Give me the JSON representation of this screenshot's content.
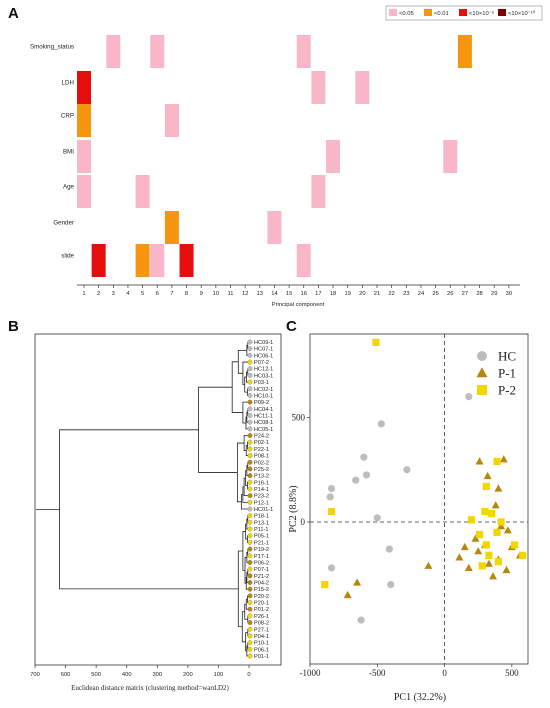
{
  "panels": {
    "a": {
      "label": "A"
    },
    "b": {
      "label": "B"
    },
    "c": {
      "label": "C"
    }
  },
  "chart_data": [
    {
      "panel": "A",
      "type": "heatmap",
      "xlabel": "Principal component",
      "x": [
        1,
        2,
        3,
        4,
        5,
        6,
        7,
        8,
        9,
        10,
        11,
        12,
        13,
        14,
        15,
        16,
        17,
        18,
        19,
        20,
        21,
        22,
        23,
        24,
        25,
        26,
        27,
        28,
        29,
        30
      ],
      "rows": [
        "Smoking_status",
        "LDH",
        "CRP",
        "BMI",
        "Age",
        "Gender",
        "slide"
      ],
      "legend": [
        {
          "key": "p05",
          "label": "<0.05",
          "color": "#f9b6c9"
        },
        {
          "key": "p01",
          "label": "<0.01",
          "color": "#f6960f"
        },
        {
          "key": "p1e5",
          "label": "<10×10⁻⁵",
          "color": "#e60d0d"
        },
        {
          "key": "p1e10",
          "label": "<10×10⁻¹⁰",
          "color": "#7a0000"
        }
      ],
      "cells": [
        {
          "row": "Smoking_status",
          "pc": 3,
          "level": "p05"
        },
        {
          "row": "Smoking_status",
          "pc": 6,
          "level": "p05"
        },
        {
          "row": "Smoking_status",
          "pc": 16,
          "level": "p05"
        },
        {
          "row": "Smoking_status",
          "pc": 27,
          "level": "p01"
        },
        {
          "row": "LDH",
          "pc": 1,
          "level": "p1e5"
        },
        {
          "row": "LDH",
          "pc": 17,
          "level": "p05"
        },
        {
          "row": "LDH",
          "pc": 20,
          "level": "p05"
        },
        {
          "row": "CRP",
          "pc": 1,
          "level": "p01"
        },
        {
          "row": "CRP",
          "pc": 7,
          "level": "p05"
        },
        {
          "row": "BMI",
          "pc": 1,
          "level": "p05"
        },
        {
          "row": "BMI",
          "pc": 18,
          "level": "p05"
        },
        {
          "row": "BMI",
          "pc": 26,
          "level": "p05"
        },
        {
          "row": "Age",
          "pc": 1,
          "level": "p05"
        },
        {
          "row": "Age",
          "pc": 5,
          "level": "p05"
        },
        {
          "row": "Age",
          "pc": 17,
          "level": "p05"
        },
        {
          "row": "Gender",
          "pc": 7,
          "level": "p01"
        },
        {
          "row": "Gender",
          "pc": 14,
          "level": "p05"
        },
        {
          "row": "slide",
          "pc": 2,
          "level": "p1e5"
        },
        {
          "row": "slide",
          "pc": 5,
          "level": "p01"
        },
        {
          "row": "slide",
          "pc": 6,
          "level": "p05"
        },
        {
          "row": "slide",
          "pc": 8,
          "level": "p1e5"
        },
        {
          "row": "slide",
          "pc": 16,
          "level": "p05"
        }
      ]
    },
    {
      "panel": "B",
      "type": "dendrogram",
      "xlabel": "Euclidean distance matrix (clustering method=ward.D2)",
      "xticks": [
        700,
        600,
        500,
        400,
        300,
        200,
        100,
        0
      ],
      "group_colors": {
        "HC": "#bdbdbd",
        "P-1": "#b8860b",
        "P-2": "#f2d600"
      },
      "leaves": [
        {
          "label": "HC09-1",
          "group": "HC"
        },
        {
          "label": "HC07-1",
          "group": "HC"
        },
        {
          "label": "HC06-1",
          "group": "HC"
        },
        {
          "label": "P07-2",
          "group": "P-2"
        },
        {
          "label": "HC12-1",
          "group": "HC"
        },
        {
          "label": "HC03-1",
          "group": "HC"
        },
        {
          "label": "P03-1",
          "group": "P-2"
        },
        {
          "label": "HC02-1",
          "group": "HC"
        },
        {
          "label": "HC10-1",
          "group": "HC"
        },
        {
          "label": "P09-2",
          "group": "P-1"
        },
        {
          "label": "HC04-1",
          "group": "HC"
        },
        {
          "label": "HC11-1",
          "group": "HC"
        },
        {
          "label": "HC08-1",
          "group": "HC"
        },
        {
          "label": "HC05-1",
          "group": "HC"
        },
        {
          "label": "P24-2",
          "group": "P-1"
        },
        {
          "label": "P02-1",
          "group": "P-2"
        },
        {
          "label": "P22-1",
          "group": "P-2"
        },
        {
          "label": "P08-1",
          "group": "P-2"
        },
        {
          "label": "P02-2",
          "group": "P-1"
        },
        {
          "label": "P25-2",
          "group": "P-1"
        },
        {
          "label": "P13-2",
          "group": "P-1"
        },
        {
          "label": "P16-1",
          "group": "P-2"
        },
        {
          "label": "P14-1",
          "group": "P-2"
        },
        {
          "label": "P23-2",
          "group": "P-1"
        },
        {
          "label": "P12-1",
          "group": "P-2"
        },
        {
          "label": "HC01-1",
          "group": "HC"
        },
        {
          "label": "P18-1",
          "group": "P-2"
        },
        {
          "label": "P13-1",
          "group": "P-2"
        },
        {
          "label": "P11-1",
          "group": "P-2"
        },
        {
          "label": "P05-1",
          "group": "P-2"
        },
        {
          "label": "P21-1",
          "group": "P-2"
        },
        {
          "label": "P19-2",
          "group": "P-1"
        },
        {
          "label": "P17-1",
          "group": "P-2"
        },
        {
          "label": "P06-2",
          "group": "P-1"
        },
        {
          "label": "P07-1",
          "group": "P-2"
        },
        {
          "label": "P21-2",
          "group": "P-1"
        },
        {
          "label": "P04-2",
          "group": "P-1"
        },
        {
          "label": "P15-2",
          "group": "P-1"
        },
        {
          "label": "P20-2",
          "group": "P-1"
        },
        {
          "label": "P20-1",
          "group": "P-2"
        },
        {
          "label": "P01-2",
          "group": "P-1"
        },
        {
          "label": "P26-1",
          "group": "P-2"
        },
        {
          "label": "P08-2",
          "group": "P-1"
        },
        {
          "label": "P27-1",
          "group": "P-2"
        },
        {
          "label": "P04-1",
          "group": "P-2"
        },
        {
          "label": "P10-1",
          "group": "P-2"
        },
        {
          "label": "P06-1",
          "group": "P-2"
        },
        {
          "label": "P01-1",
          "group": "P-2"
        }
      ],
      "merges": [
        {
          "a": 0,
          "b": 1,
          "h": 4
        },
        {
          "a": 48,
          "b": 2,
          "h": 7
        },
        {
          "a": 4,
          "b": 5,
          "h": 4
        },
        {
          "a": 50,
          "b": 6,
          "h": 8
        },
        {
          "a": 7,
          "b": 8,
          "h": 5
        },
        {
          "a": 51,
          "b": 52,
          "h": 14
        },
        {
          "a": 3,
          "b": 53,
          "h": 20
        },
        {
          "a": 49,
          "b": 54,
          "h": 35
        },
        {
          "a": 10,
          "b": 11,
          "h": 4
        },
        {
          "a": 56,
          "b": 12,
          "h": 7
        },
        {
          "a": 57,
          "b": 13,
          "h": 10
        },
        {
          "a": 9,
          "b": 58,
          "h": 20
        },
        {
          "a": 55,
          "b": 59,
          "h": 55
        },
        {
          "a": 15,
          "b": 16,
          "h": 5
        },
        {
          "a": 61,
          "b": 17,
          "h": 9
        },
        {
          "a": 14,
          "b": 62,
          "h": 16
        },
        {
          "a": 18,
          "b": 19,
          "h": 4
        },
        {
          "a": 64,
          "b": 20,
          "h": 7
        },
        {
          "a": 21,
          "b": 22,
          "h": 5
        },
        {
          "a": 65,
          "b": 66,
          "h": 11
        },
        {
          "a": 67,
          "b": 23,
          "h": 16
        },
        {
          "a": 68,
          "b": 24,
          "h": 20
        },
        {
          "a": 69,
          "b": 25,
          "h": 25
        },
        {
          "a": 63,
          "b": 70,
          "h": 38
        },
        {
          "a": 60,
          "b": 71,
          "h": 165
        },
        {
          "a": 26,
          "b": 27,
          "h": 4
        },
        {
          "a": 73,
          "b": 28,
          "h": 7
        },
        {
          "a": 29,
          "b": 30,
          "h": 5
        },
        {
          "a": 74,
          "b": 75,
          "h": 11
        },
        {
          "a": 31,
          "b": 32,
          "h": 4
        },
        {
          "a": 77,
          "b": 33,
          "h": 7
        },
        {
          "a": 34,
          "b": 35,
          "h": 4
        },
        {
          "a": 79,
          "b": 36,
          "h": 7
        },
        {
          "a": 80,
          "b": 37,
          "h": 9
        },
        {
          "a": 78,
          "b": 81,
          "h": 13
        },
        {
          "a": 76,
          "b": 82,
          "h": 20
        },
        {
          "a": 38,
          "b": 39,
          "h": 5
        },
        {
          "a": 84,
          "b": 40,
          "h": 9
        },
        {
          "a": 41,
          "b": 42,
          "h": 4
        },
        {
          "a": 85,
          "b": 86,
          "h": 14
        },
        {
          "a": 43,
          "b": 44,
          "h": 4
        },
        {
          "a": 45,
          "b": 46,
          "h": 4
        },
        {
          "a": 89,
          "b": 47,
          "h": 7
        },
        {
          "a": 88,
          "b": 90,
          "h": 11
        },
        {
          "a": 87,
          "b": 91,
          "h": 22
        },
        {
          "a": 83,
          "b": 92,
          "h": 35
        },
        {
          "a": 72,
          "b": 93,
          "h": 620
        }
      ]
    },
    {
      "panel": "C",
      "type": "scatter",
      "xlabel": "PC1 (32.2%)",
      "ylabel": "PC2 (8.8%)",
      "xlim": [
        -1000,
        620
      ],
      "ylim": [
        -680,
        900
      ],
      "xticks": [
        -1000,
        -500,
        0,
        500
      ],
      "yticks": [
        500,
        0
      ],
      "series": [
        {
          "name": "HC",
          "marker": "circle",
          "color": "#bdbdbd",
          "points": [
            [
              -840,
              160
            ],
            [
              -850,
              120
            ],
            [
              -600,
              310
            ],
            [
              -470,
              470
            ],
            [
              -660,
              200
            ],
            [
              -580,
              225
            ],
            [
              -280,
              250
            ],
            [
              180,
              600
            ],
            [
              -500,
              20
            ],
            [
              -410,
              -130
            ],
            [
              -840,
              -220
            ],
            [
              -400,
              -300
            ],
            [
              -620,
              -470
            ]
          ]
        },
        {
          "name": "P-1",
          "marker": "triangle",
          "color": "#b8860b",
          "points": [
            [
              260,
              290
            ],
            [
              440,
              300
            ],
            [
              230,
              -80
            ],
            [
              320,
              220
            ],
            [
              400,
              160
            ],
            [
              380,
              80
            ],
            [
              420,
              -20
            ],
            [
              300,
              -110
            ],
            [
              250,
              -140
            ],
            [
              150,
              -120
            ],
            [
              110,
              -170
            ],
            [
              180,
              -220
            ],
            [
              330,
              -200
            ],
            [
              360,
              -260
            ],
            [
              400,
              -180
            ],
            [
              470,
              -40
            ],
            [
              500,
              -120
            ],
            [
              460,
              -230
            ],
            [
              560,
              -160
            ],
            [
              -120,
              -210
            ],
            [
              -650,
              -290
            ],
            [
              -720,
              -350
            ]
          ]
        },
        {
          "name": "P-2",
          "marker": "square",
          "color": "#f2d600",
          "points": [
            [
              -510,
              860
            ],
            [
              -840,
              50
            ],
            [
              390,
              290
            ],
            [
              310,
              170
            ],
            [
              200,
              10
            ],
            [
              300,
              50
            ],
            [
              350,
              40
            ],
            [
              260,
              -60
            ],
            [
              420,
              0
            ],
            [
              390,
              -50
            ],
            [
              310,
              -110
            ],
            [
              330,
              -160
            ],
            [
              280,
              -210
            ],
            [
              400,
              -190
            ],
            [
              520,
              -110
            ],
            [
              580,
              -160
            ],
            [
              -890,
              -300
            ]
          ]
        }
      ]
    }
  ]
}
